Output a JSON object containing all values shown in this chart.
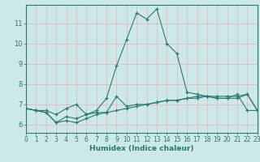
{
  "title": "",
  "xlabel": "Humidex (Indice chaleur)",
  "ylabel": "",
  "bg_color": "#cce8e8",
  "grid_color": "#e8b0b0",
  "line_color": "#2a7a6e",
  "xmin": 0,
  "xmax": 23,
  "ymin": 5.6,
  "ymax": 11.9,
  "yticks": [
    6,
    7,
    8,
    9,
    10,
    11
  ],
  "xticks": [
    0,
    1,
    2,
    3,
    4,
    5,
    6,
    7,
    8,
    9,
    10,
    11,
    12,
    13,
    14,
    15,
    16,
    17,
    18,
    19,
    20,
    21,
    22,
    23
  ],
  "line1_x": [
    0,
    1,
    2,
    3,
    4,
    5,
    6,
    7,
    8,
    9,
    10,
    11,
    12,
    13,
    14,
    15,
    16,
    17,
    18,
    19,
    20,
    21,
    22,
    23
  ],
  "line1_y": [
    6.8,
    6.7,
    6.7,
    6.5,
    6.8,
    7.0,
    6.5,
    6.6,
    6.6,
    7.4,
    6.9,
    7.0,
    7.0,
    7.1,
    7.2,
    7.2,
    7.3,
    7.4,
    7.4,
    7.3,
    7.3,
    7.3,
    7.5,
    6.7
  ],
  "line2_x": [
    0,
    1,
    2,
    3,
    4,
    5,
    6,
    7,
    8,
    9,
    10,
    11,
    12,
    13,
    14,
    15,
    16,
    17,
    18,
    19,
    20,
    21,
    22,
    23
  ],
  "line2_y": [
    6.8,
    6.7,
    6.6,
    6.1,
    6.4,
    6.3,
    6.5,
    6.7,
    7.3,
    8.9,
    10.2,
    11.5,
    11.2,
    11.7,
    10.0,
    9.5,
    7.6,
    7.5,
    7.4,
    7.3,
    7.3,
    7.5,
    6.7,
    6.7
  ],
  "line3_x": [
    0,
    1,
    2,
    3,
    4,
    5,
    6,
    7,
    8,
    9,
    10,
    11,
    12,
    13,
    14,
    15,
    16,
    17,
    18,
    19,
    20,
    21,
    22,
    23
  ],
  "line3_y": [
    6.8,
    6.7,
    6.6,
    6.1,
    6.2,
    6.1,
    6.3,
    6.5,
    6.6,
    6.7,
    6.8,
    6.9,
    7.0,
    7.1,
    7.2,
    7.2,
    7.3,
    7.3,
    7.4,
    7.4,
    7.4,
    7.4,
    7.5,
    6.7
  ],
  "tick_fontsize": 5.5,
  "xlabel_fontsize": 6.5
}
